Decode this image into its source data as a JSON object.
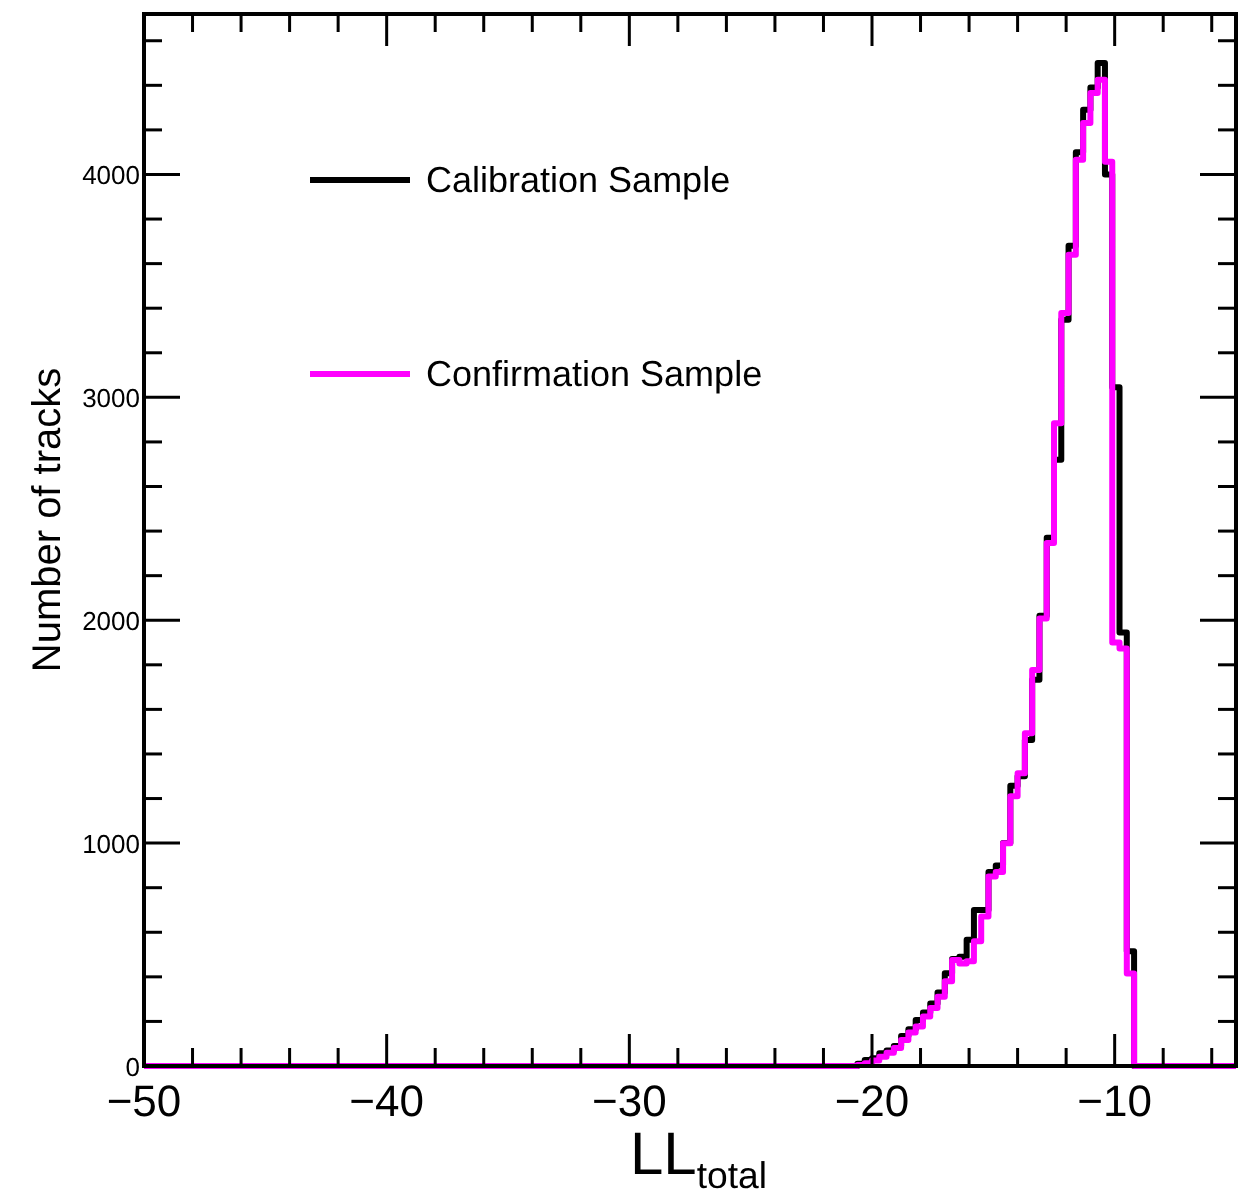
{
  "chart_data": {
    "type": "histogram",
    "xlabel": "LL$_{total}$",
    "ylabel": "Number of tracks",
    "bins": [
      -50,
      -20.6,
      -20.3,
      -20,
      -19.7,
      -19.4,
      -19.1,
      -18.8,
      -18.5,
      -18.2,
      -17.9,
      -17.6,
      -17.3,
      -17,
      -16.7,
      -16.4,
      -16.1,
      -15.8,
      -15.5,
      -15.2,
      -14.9,
      -14.6,
      -14.3,
      -14,
      -13.7,
      -13.4,
      -13.1,
      -12.8,
      -12.5,
      -12.2,
      -11.9,
      -11.6,
      -11.3,
      -11,
      -10.7,
      -10.4,
      -10.1,
      -9.8,
      -9.5,
      -9.2,
      -5
    ],
    "series": [
      {
        "name": "Calibration Sample",
        "color": "#000000",
        "values": [
          0,
          10,
          27,
          35,
          57,
          70,
          90,
          135,
          165,
          206,
          240,
          280,
          330,
          416,
          480,
          490,
          566,
          700,
          700,
          870,
          900,
          1000,
          1257,
          1300,
          1463,
          1733,
          2020,
          2370,
          2720,
          3348,
          3680,
          4100,
          4290,
          4390,
          4500,
          4000,
          3045,
          1945,
          515,
          0
        ]
      },
      {
        "name": "Confirmation Sample",
        "color": "#ff00ff",
        "values": [
          0,
          5,
          12,
          25,
          42,
          60,
          81,
          117,
          150,
          177,
          222,
          260,
          311,
          380,
          476,
          460,
          470,
          560,
          671,
          850,
          870,
          999,
          1210,
          1313,
          1493,
          1777,
          2008,
          2346,
          2884,
          3378,
          3640,
          4066,
          4231,
          4365,
          4425,
          4057,
          1900,
          1873,
          415,
          0
        ]
      }
    ],
    "xlim": [
      -50,
      -5
    ],
    "xticks": [
      -50,
      {
        "value": -48,
        "label": null
      },
      {
        "value": -46,
        "label": null
      },
      {
        "value": -44,
        "label": null
      },
      {
        "value": -42,
        "label": null
      },
      -40,
      {
        "value": -38,
        "label": null
      },
      {
        "value": -36,
        "label": null
      },
      {
        "value": -34,
        "label": null
      },
      {
        "value": -32,
        "label": null
      },
      -30,
      {
        "value": -28,
        "label": null
      },
      {
        "value": -26,
        "label": null
      },
      {
        "value": -24,
        "label": null
      },
      {
        "value": -22,
        "label": null
      },
      -20,
      {
        "value": -18,
        "label": null
      },
      {
        "value": -16,
        "label": null
      },
      {
        "value": -14,
        "label": null
      },
      {
        "value": -12,
        "label": null
      },
      -10,
      {
        "value": -8,
        "label": null
      },
      {
        "value": -6,
        "label": null
      }
    ],
    "ylim": [
      0,
      4720
    ],
    "yticks": [
      0,
      {
        "value": 200,
        "label": null
      },
      {
        "value": 400,
        "label": null
      },
      {
        "value": 600,
        "label": null
      },
      {
        "value": 800,
        "label": null
      },
      1000,
      {
        "value": 1200,
        "label": null
      },
      {
        "value": 1400,
        "label": null
      },
      {
        "value": 1600,
        "label": null
      },
      {
        "value": 1800,
        "label": null
      },
      2000,
      {
        "value": 2200,
        "label": null
      },
      {
        "value": 2400,
        "label": null
      },
      {
        "value": 2600,
        "label": null
      },
      {
        "value": 2800,
        "label": null
      },
      3000,
      {
        "value": 3200,
        "label": null
      },
      {
        "value": 3400,
        "label": null
      },
      {
        "value": 3600,
        "label": null
      },
      {
        "value": 3800,
        "label": null
      },
      4000,
      {
        "value": 4200,
        "label": null
      },
      {
        "value": 4400,
        "label": null
      },
      {
        "value": 4600,
        "label": null
      }
    ],
    "grid": false,
    "legend": "top left"
  }
}
